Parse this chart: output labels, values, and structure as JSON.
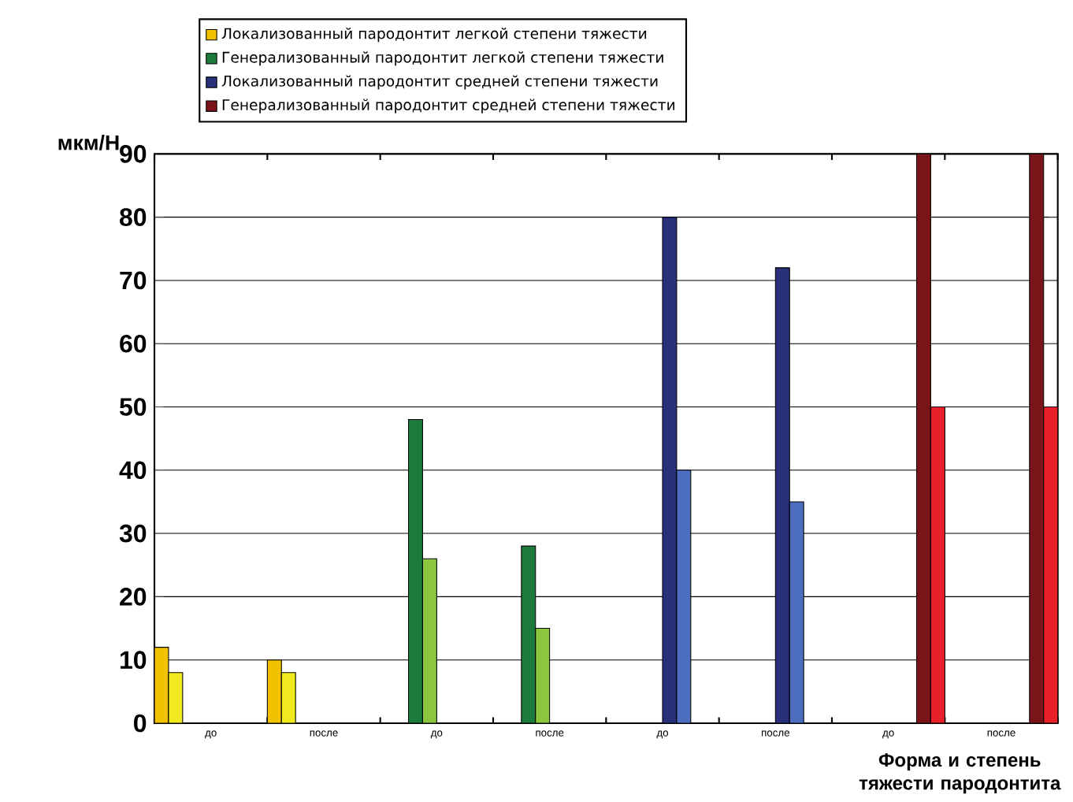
{
  "chart_data": {
    "type": "bar",
    "ylabel": "мкм/Н",
    "xlabel": "Форма и степень тяжести пародонтита",
    "categories": [
      "до",
      "после",
      "до",
      "после",
      "до",
      "после",
      "до",
      "после"
    ],
    "series": [
      {
        "name": "Локализованный пародонтит легкой степени тяжести",
        "color": "#f2c200",
        "values": [
          12,
          10,
          null,
          null,
          null,
          null,
          null,
          null
        ]
      },
      {
        "color": "#f2ea20",
        "values": [
          8,
          8,
          null,
          null,
          null,
          null,
          null,
          null
        ]
      },
      {
        "name": "Генерализованный пародонтит легкой степени тяжести",
        "color": "#1b7a3c",
        "values": [
          null,
          null,
          48,
          28,
          null,
          null,
          null,
          null
        ]
      },
      {
        "color": "#8cc63f",
        "values": [
          null,
          null,
          26,
          15,
          null,
          null,
          null,
          null
        ]
      },
      {
        "name": "Локализованный пародонтит средней степени тяжести",
        "color": "#28307a",
        "values": [
          null,
          null,
          null,
          null,
          80,
          72,
          null,
          null
        ]
      },
      {
        "color": "#4d6ec0",
        "values": [
          null,
          null,
          null,
          null,
          40,
          35,
          null,
          null
        ]
      },
      {
        "name": "Генерализованный пародонтит средней степени тяжести",
        "color": "#7a1418",
        "values": [
          null,
          null,
          null,
          null,
          null,
          null,
          90,
          90
        ]
      },
      {
        "color": "#e8202a",
        "values": [
          null,
          null,
          null,
          null,
          null,
          null,
          50,
          50
        ]
      }
    ],
    "ylim": [
      0,
      90
    ],
    "yticks": [
      0,
      10,
      20,
      30,
      40,
      50,
      60,
      70,
      80,
      90
    ],
    "grid": "y",
    "legend": "top"
  }
}
